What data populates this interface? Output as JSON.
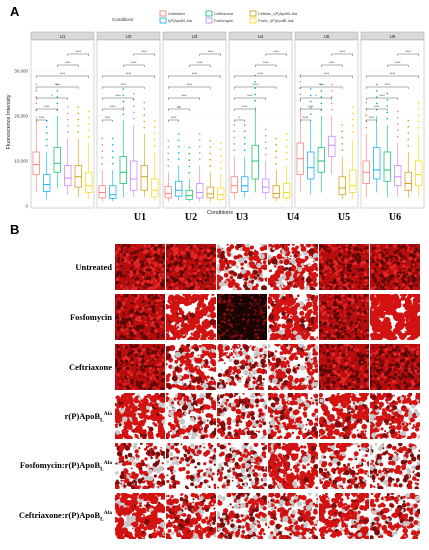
{
  "panel_a_label": "A",
  "panel_b_label": "B",
  "legend": {
    "title": "Conditions",
    "entries": [
      {
        "label": "Untreated",
        "color": "#f8766d"
      },
      {
        "label": "r(P)ApoBL Ala",
        "color": "#00a9ff"
      },
      {
        "label": "Ceftriaxone",
        "color": "#00be67"
      },
      {
        "label": "Fosfomycin",
        "color": "#c77cff"
      },
      {
        "label": "Ceftriax_r(P)ApoBL Ala",
        "color": "#cd9600"
      },
      {
        "label": "Fosfo_r(P)ApoBL Ala",
        "color": "#f5d900"
      }
    ]
  },
  "chart_data": {
    "type": "box",
    "ylabel": "Fluorescence Intensity",
    "xlabel": "Conditions",
    "yticks": [
      "0",
      "10,000",
      "20,000",
      "30,000"
    ],
    "ylim": [
      0,
      36000
    ],
    "facets": [
      {
        "label": "U1",
        "boxes": [
          [
            3000,
            7000,
            9200,
            12000,
            20000
          ],
          [
            1500,
            3200,
            4800,
            7000,
            12000
          ],
          [
            4000,
            7500,
            9500,
            13000,
            20000
          ],
          [
            2500,
            4500,
            6200,
            9000,
            15000
          ],
          [
            2000,
            4200,
            6500,
            9000,
            15000
          ],
          [
            1500,
            3000,
            4500,
            7500,
            14000
          ]
        ],
        "sig": [
          "****",
          "****",
          "*",
          "****",
          "****",
          "****",
          "****"
        ]
      },
      {
        "label": "U2",
        "boxes": [
          [
            1000,
            1800,
            3000,
            4500,
            8000
          ],
          [
            1000,
            1700,
            2500,
            4500,
            8000
          ],
          [
            2000,
            5000,
            7500,
            11000,
            19000
          ],
          [
            2000,
            3500,
            6000,
            10000,
            18000
          ],
          [
            2000,
            3500,
            6500,
            9000,
            16000
          ],
          [
            1000,
            2000,
            3500,
            6000,
            12000
          ]
        ],
        "sig": [
          "****",
          "****",
          "****",
          "****",
          "****",
          "****",
          "****"
        ]
      },
      {
        "label": "U3",
        "boxes": [
          [
            1000,
            1800,
            2800,
            4300,
            7500
          ],
          [
            1200,
            2200,
            3500,
            5500,
            9000
          ],
          [
            1000,
            1500,
            2300,
            3500,
            6000
          ],
          [
            1000,
            1800,
            3000,
            5000,
            9000
          ],
          [
            1000,
            1800,
            2700,
            4200,
            7500
          ],
          [
            800,
            1500,
            2500,
            4000,
            7000
          ]
        ],
        "sig": [
          "****",
          "ns",
          "****",
          "****",
          "****",
          "****",
          "****"
        ]
      },
      {
        "label": "U4",
        "boxes": [
          [
            1500,
            3000,
            4500,
            6500,
            11000
          ],
          [
            1800,
            3200,
            4500,
            6500,
            11000
          ],
          [
            3000,
            6000,
            10000,
            13500,
            22000
          ],
          [
            1500,
            3000,
            4200,
            6000,
            10000
          ],
          [
            1000,
            1800,
            2800,
            4500,
            8000
          ],
          [
            1000,
            1800,
            3000,
            5000,
            9000
          ]
        ],
        "sig": [
          "*",
          "****",
          "****",
          "****",
          "****",
          "****",
          "****"
        ]
      },
      {
        "label": "U5",
        "boxes": [
          [
            3000,
            7000,
            10500,
            14000,
            22000
          ],
          [
            2500,
            6000,
            8500,
            12000,
            19000
          ],
          [
            3000,
            7500,
            10000,
            13000,
            20000
          ],
          [
            7000,
            11000,
            13500,
            15500,
            20000
          ],
          [
            1500,
            2500,
            4000,
            6500,
            11000
          ],
          [
            1500,
            3000,
            4500,
            8000,
            15000
          ]
        ],
        "sig": [
          "****",
          "****",
          "*",
          "****",
          "****",
          "****",
          "****"
        ]
      },
      {
        "label": "U6",
        "boxes": [
          [
            2000,
            5000,
            7500,
            10000,
            16000
          ],
          [
            3000,
            6000,
            8000,
            13000,
            20000
          ],
          [
            2000,
            5500,
            8000,
            12000,
            18000
          ],
          [
            2000,
            4500,
            6500,
            9000,
            14000
          ],
          [
            1800,
            3500,
            5000,
            7500,
            12000
          ],
          [
            2000,
            4500,
            7000,
            10000,
            16000
          ]
        ],
        "sig": [
          "****",
          "****",
          "****",
          "****",
          "****",
          "****",
          "****"
        ]
      }
    ]
  },
  "micro": {
    "columns": [
      "U1",
      "U2",
      "U3",
      "U4",
      "U5",
      "U6"
    ],
    "rows": [
      {
        "label": "Untreated",
        "sub": "",
        "sup": ""
      },
      {
        "label": "Fosfomycin",
        "sub": "",
        "sup": ""
      },
      {
        "label": "Ceftriaxone",
        "sub": "",
        "sup": ""
      },
      {
        "label": "r(P)ApoB",
        "sub": "L",
        "sup": "Ala"
      },
      {
        "label": "Fosfomycin:r(P)ApoB",
        "sub": "L",
        "sup": "Ala"
      },
      {
        "label": "Ceftriaxone:r(P)ApoB",
        "sub": "L",
        "sup": "Ala"
      }
    ],
    "coverage": [
      [
        0.92,
        0.88,
        0.42,
        0.5,
        0.9,
        0.88
      ],
      [
        0.85,
        0.6,
        0.98,
        0.55,
        0.85,
        0.8
      ],
      [
        0.9,
        0.45,
        0.35,
        0.45,
        0.92,
        0.88
      ],
      [
        0.6,
        0.4,
        0.35,
        0.4,
        0.55,
        0.45
      ],
      [
        0.35,
        0.25,
        0.3,
        0.55,
        0.4,
        0.3
      ],
      [
        0.6,
        0.5,
        0.35,
        0.45,
        0.55,
        0.4
      ]
    ],
    "dark_tiles": [
      [
        1,
        2
      ]
    ]
  }
}
